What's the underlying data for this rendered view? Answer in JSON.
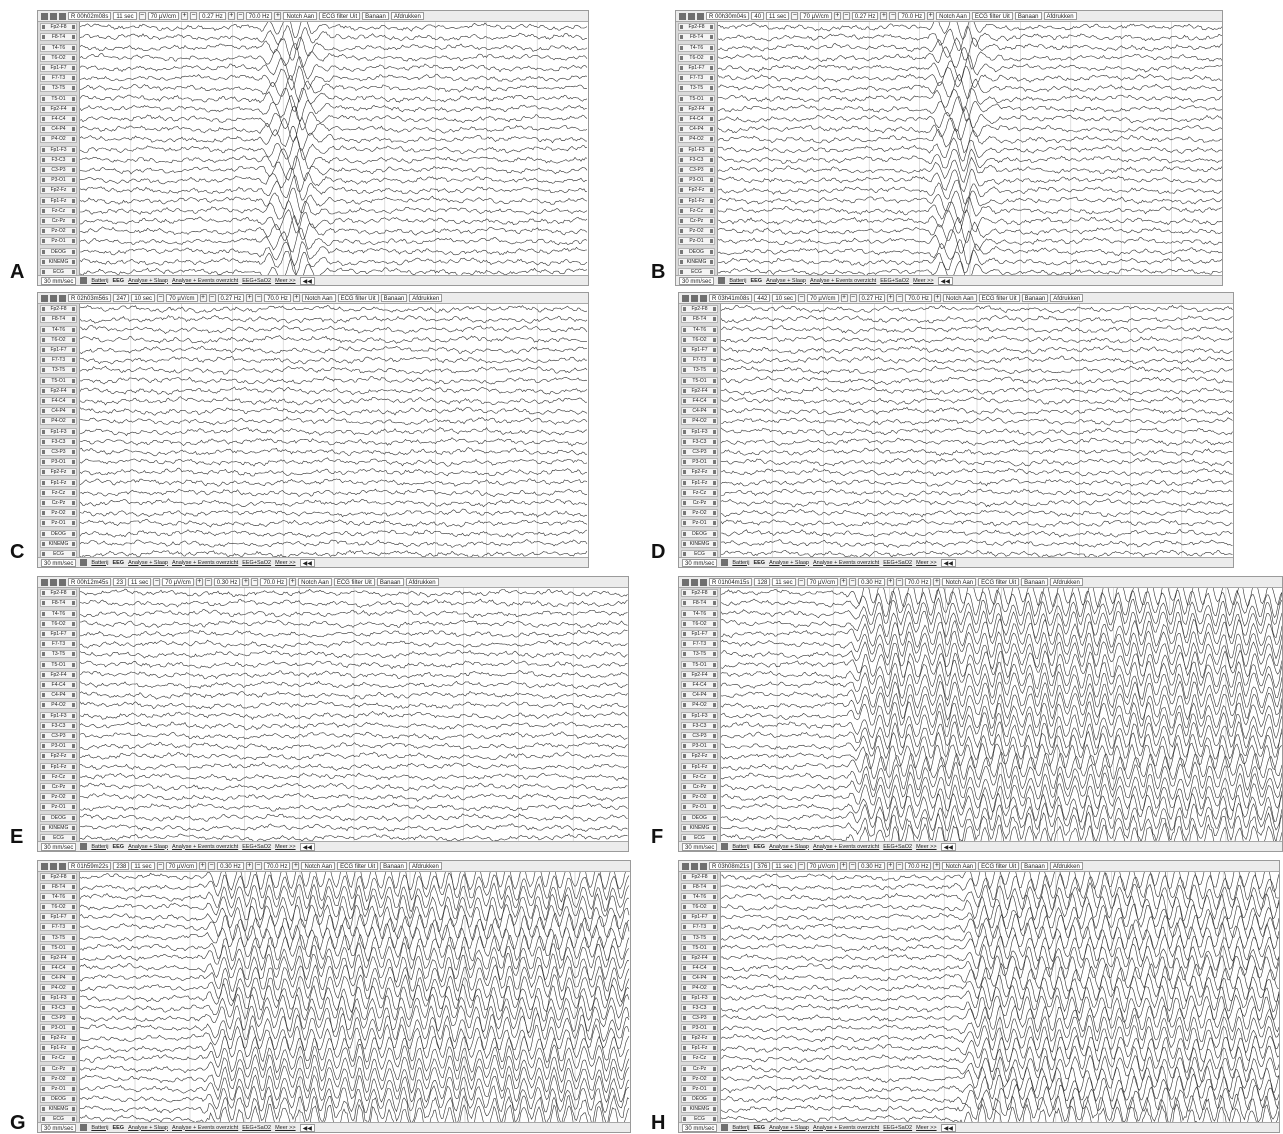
{
  "panels": [
    {
      "label": "A",
      "time": "R 00h02m08s",
      "extra": "",
      "duration": "11 sec",
      "sensitivity": "70 µV/cm",
      "lowcut": "0.27 Hz",
      "highcut": "70.0 Hz",
      "style": "burst"
    },
    {
      "label": "B",
      "time": "R 00h30m04s",
      "extra": "40",
      "duration": "11 sec",
      "sensitivity": "70 µV/cm",
      "lowcut": "0.27 Hz",
      "highcut": "70.0 Hz",
      "style": "burst"
    },
    {
      "label": "C",
      "time": "R 02h03m56s",
      "extra": "247",
      "duration": "10 sec",
      "sensitivity": "70 µV/cm",
      "lowcut": "0.27 Hz",
      "highcut": "70.0 Hz",
      "style": "normal"
    },
    {
      "label": "D",
      "time": "R 03h41m08s",
      "extra": "442",
      "duration": "10 sec",
      "sensitivity": "70 µV/cm",
      "lowcut": "0.27 Hz",
      "highcut": "70.0 Hz",
      "style": "normal"
    },
    {
      "label": "E",
      "time": "R 00h12m45s",
      "extra": "23",
      "duration": "11 sec",
      "sensitivity": "70 µV/cm",
      "lowcut": "0.30 Hz",
      "highcut": "70.0 Hz",
      "style": "normal"
    },
    {
      "label": "F",
      "time": "R 01h04m15s",
      "extra": "128",
      "duration": "11 sec",
      "sensitivity": "70 µV/cm",
      "lowcut": "0.30 Hz",
      "highcut": "70.0 Hz",
      "style": "seizure"
    },
    {
      "label": "G",
      "time": "R 01h59m22s",
      "extra": "238",
      "duration": "11 sec",
      "sensitivity": "70 µV/cm",
      "lowcut": "0.30 Hz",
      "highcut": "70.0 Hz",
      "style": "seizure"
    },
    {
      "label": "H",
      "time": "R 03h08m21s",
      "extra": "376",
      "duration": "11 sec",
      "sensitivity": "70 µV/cm",
      "lowcut": "0.30 Hz",
      "highcut": "70.0 Hz",
      "style": "seizure"
    }
  ],
  "toolbar": {
    "notch": "Notch Aan",
    "ecg_filter": "ECG filter Uit",
    "banaan": "Banaan",
    "print": "Afdrukken"
  },
  "channels": [
    "Fp2-F8",
    "F8-T4",
    "T4-T6",
    "T6-O2",
    "Fp1-F7",
    "F7-T3",
    "T3-T5",
    "T5-O1",
    "Fp2-F4",
    "F4-C4",
    "C4-P4",
    "P4-O2",
    "Fp1-F3",
    "F3-C3",
    "C3-P3",
    "P3-O1",
    "Fp2-Fz",
    "Fp1-Fz",
    "Fz-Cz",
    "Cz-Pz",
    "Pz-O2",
    "Pz-O1",
    "DEOG",
    "KINEMG",
    "ECG"
  ],
  "bottombar": {
    "speed": "30 mm/sec",
    "tabs": [
      "Batterij",
      "EEG",
      "Analyse + Slaap",
      "Analyse + Events overzicht",
      "EEG+SaO2",
      "Meer >>"
    ],
    "active_tab": "EEG"
  },
  "colors": {
    "trace": "#333333",
    "toolbar": "#ececec",
    "sidebar": "#d9d9d9"
  }
}
